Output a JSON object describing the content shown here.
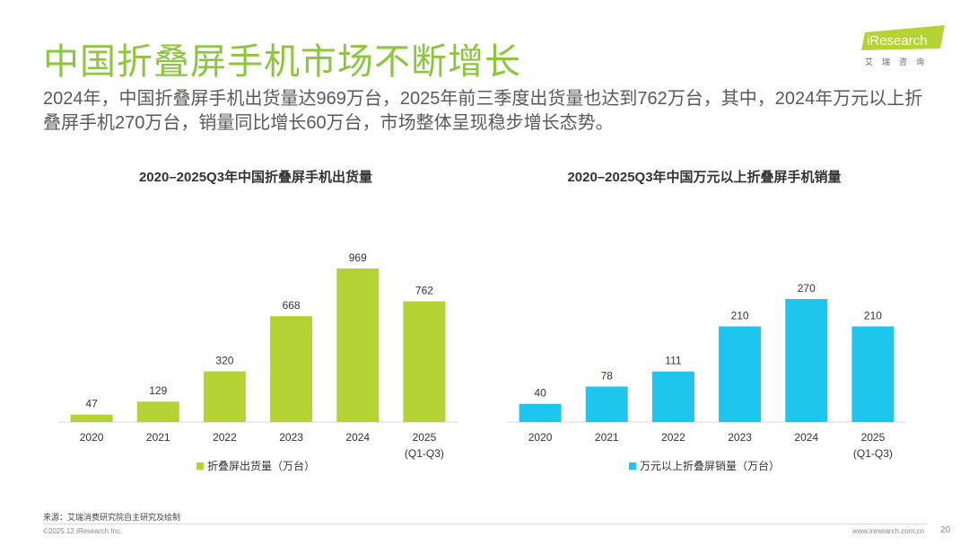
{
  "page": {
    "title": "中国折叠屏手机市场不断增长",
    "subtitle": "2024年，中国折叠屏手机出货量达969万台，2025年前三季度出货量也达到762万台，其中，2024年万元以上折叠屏手机270万台，销量同比增长60万台，市场整体呈现稳步增长态势。",
    "logo_brand": "iResearch",
    "logo_cn": "艾瑞咨询",
    "source": "来源：艾瑞消费研究院自主研究及绘制",
    "copyright": "©2025.12 iResearch Inc.",
    "url": "www.iresearch.com.cn",
    "page_number": "20"
  },
  "colors": {
    "title_green": "#8cc63f",
    "bar_green": "#b5d334",
    "bar_blue": "#1ec6ee"
  },
  "chart_data": [
    {
      "type": "bar",
      "title": "2020–2025Q3年中国折叠屏手机出货量",
      "categories": [
        "2020",
        "2021",
        "2022",
        "2023",
        "2024",
        "2025\n(Q1-Q3)"
      ],
      "series": [
        {
          "name": "折叠屏出货量（万台）",
          "values": [
            47,
            129,
            320,
            668,
            969,
            762
          ]
        }
      ],
      "ylim": [
        0,
        1000
      ],
      "xlabel": "",
      "ylabel": "",
      "legend": "bottom",
      "color": "#b5d334"
    },
    {
      "type": "bar",
      "title": "2020–2025Q3年中国万元以上折叠屏手机销量",
      "categories": [
        "2020",
        "2021",
        "2022",
        "2023",
        "2024",
        "2025\n(Q1-Q3)"
      ],
      "series": [
        {
          "name": "万元以上折叠屏销量（万台）",
          "values": [
            40,
            78,
            111,
            210,
            270,
            210
          ]
        }
      ],
      "ylim": [
        0,
        280
      ],
      "xlabel": "",
      "ylabel": "",
      "legend": "bottom",
      "color": "#1ec6ee"
    }
  ]
}
